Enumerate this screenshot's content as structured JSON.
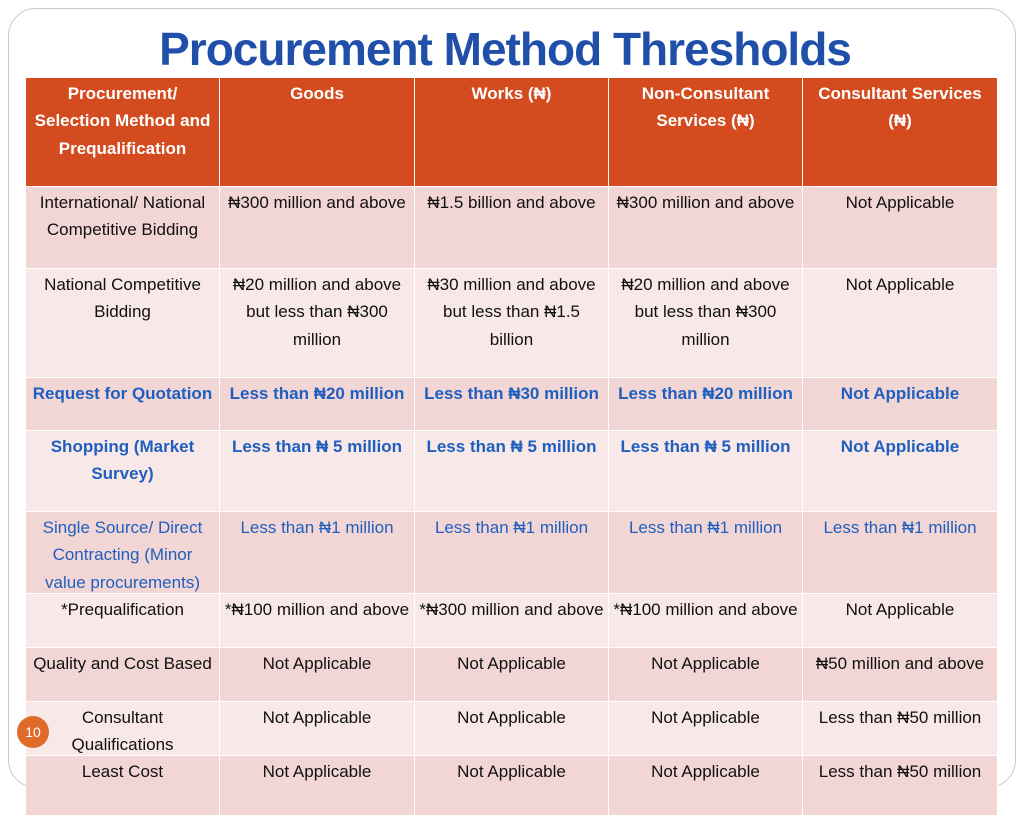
{
  "title": "Procurement Method Thresholds",
  "table": {
    "header": [
      "Procurement/ Selection Method and Prequalification",
      "Goods",
      "Works (₦)",
      "Non-Consultant Services (₦)",
      "Consultant Services (₦)"
    ],
    "rows": [
      [
        "International/ National Competitive Bidding",
        "₦300 million and above",
        "₦1.5 billion and above",
        "₦300 million and above",
        "Not Applicable"
      ],
      [
        "National Competitive Bidding",
        "₦20 million and above but less than ₦300 million",
        "₦30 million and above but less than ₦1.5 billion",
        "₦20 million and above but less than ₦300 million",
        "Not Applicable"
      ],
      [
        "Request for Quotation",
        "Less than ₦20 million",
        "Less than ₦30 million",
        "Less than ₦20 million",
        "Not Applicable"
      ],
      [
        "Shopping (Market Survey)",
        "Less than ₦ 5 million",
        "Less than ₦ 5 million",
        "Less than ₦ 5 million",
        "Not Applicable"
      ],
      [
        "Single Source/ Direct Contracting (Minor value procurements)",
        "Less than ₦1 million",
        "Less than ₦1 million",
        "Less than ₦1 million",
        "Less than ₦1 million"
      ],
      [
        "*Prequalification",
        "*₦100 million and above",
        "*₦300 million and above",
        "*₦100 million and above",
        "Not Applicable"
      ],
      [
        "Quality and Cost Based",
        "Not Applicable",
        "Not Applicable",
        "Not Applicable",
        "₦50 million and above"
      ],
      [
        "Consultant Qualifications",
        "Not Applicable",
        "Not Applicable",
        "Not Applicable",
        "Less than ₦50 million"
      ],
      [
        "Least Cost",
        "Not Applicable",
        "Not Applicable",
        "Not Applicable",
        "Less than ₦50 million"
      ]
    ]
  },
  "page_number": "10"
}
